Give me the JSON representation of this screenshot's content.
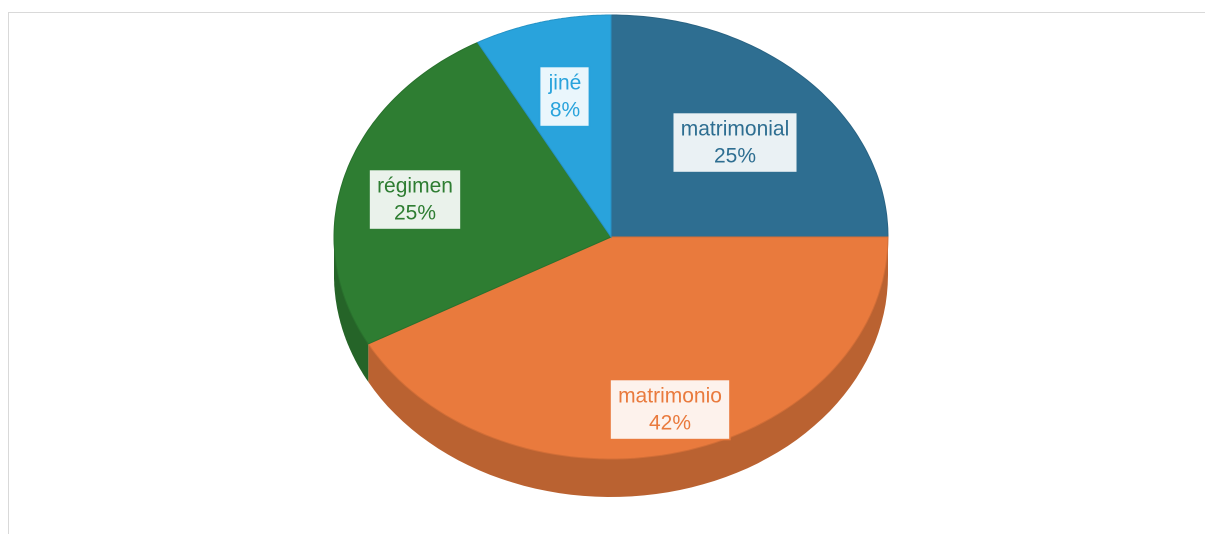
{
  "chart_data": {
    "type": "pie",
    "categories": [
      "matrimonial",
      "matrimonio",
      "régimen",
      "jiné"
    ],
    "values": [
      25,
      42,
      25,
      8
    ],
    "value_labels": [
      "25%",
      "42%",
      "25%",
      "8%"
    ],
    "colors": [
      "#2e6e91",
      "#e97a3d",
      "#2e7d32",
      "#29a3dc"
    ],
    "three_d": true
  }
}
